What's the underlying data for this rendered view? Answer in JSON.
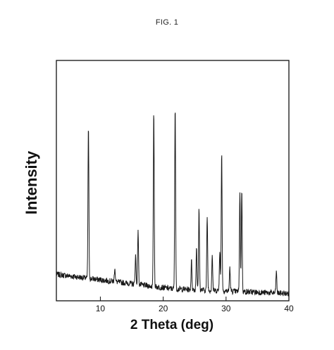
{
  "figure": {
    "title": "FIG. 1"
  },
  "chart_data": {
    "type": "line",
    "title": "",
    "xlabel": "2 Theta (deg)",
    "ylabel": "Intensity",
    "xlim": [
      3,
      40
    ],
    "ylim": [
      0,
      100
    ],
    "x_ticks": [
      10,
      20,
      30,
      40
    ],
    "y_ticks": [],
    "grid": false,
    "legend": "none",
    "colors": {
      "line": "#1a1a1a",
      "axes": "#111111"
    },
    "baseline": {
      "start": 11,
      "mid": 5,
      "end": 3
    },
    "peaks": [
      {
        "x": 8.1,
        "intensity": 64
      },
      {
        "x": 12.3,
        "intensity": 6
      },
      {
        "x": 15.6,
        "intensity": 12
      },
      {
        "x": 16.0,
        "intensity": 23
      },
      {
        "x": 18.5,
        "intensity": 73
      },
      {
        "x": 21.9,
        "intensity": 77
      },
      {
        "x": 24.5,
        "intensity": 12
      },
      {
        "x": 25.3,
        "intensity": 18
      },
      {
        "x": 25.7,
        "intensity": 34
      },
      {
        "x": 27.0,
        "intensity": 31
      },
      {
        "x": 27.8,
        "intensity": 15
      },
      {
        "x": 29.0,
        "intensity": 17
      },
      {
        "x": 29.3,
        "intensity": 58
      },
      {
        "x": 30.6,
        "intensity": 10
      },
      {
        "x": 32.2,
        "intensity": 42
      },
      {
        "x": 32.5,
        "intensity": 43
      },
      {
        "x": 38.0,
        "intensity": 9
      }
    ]
  }
}
